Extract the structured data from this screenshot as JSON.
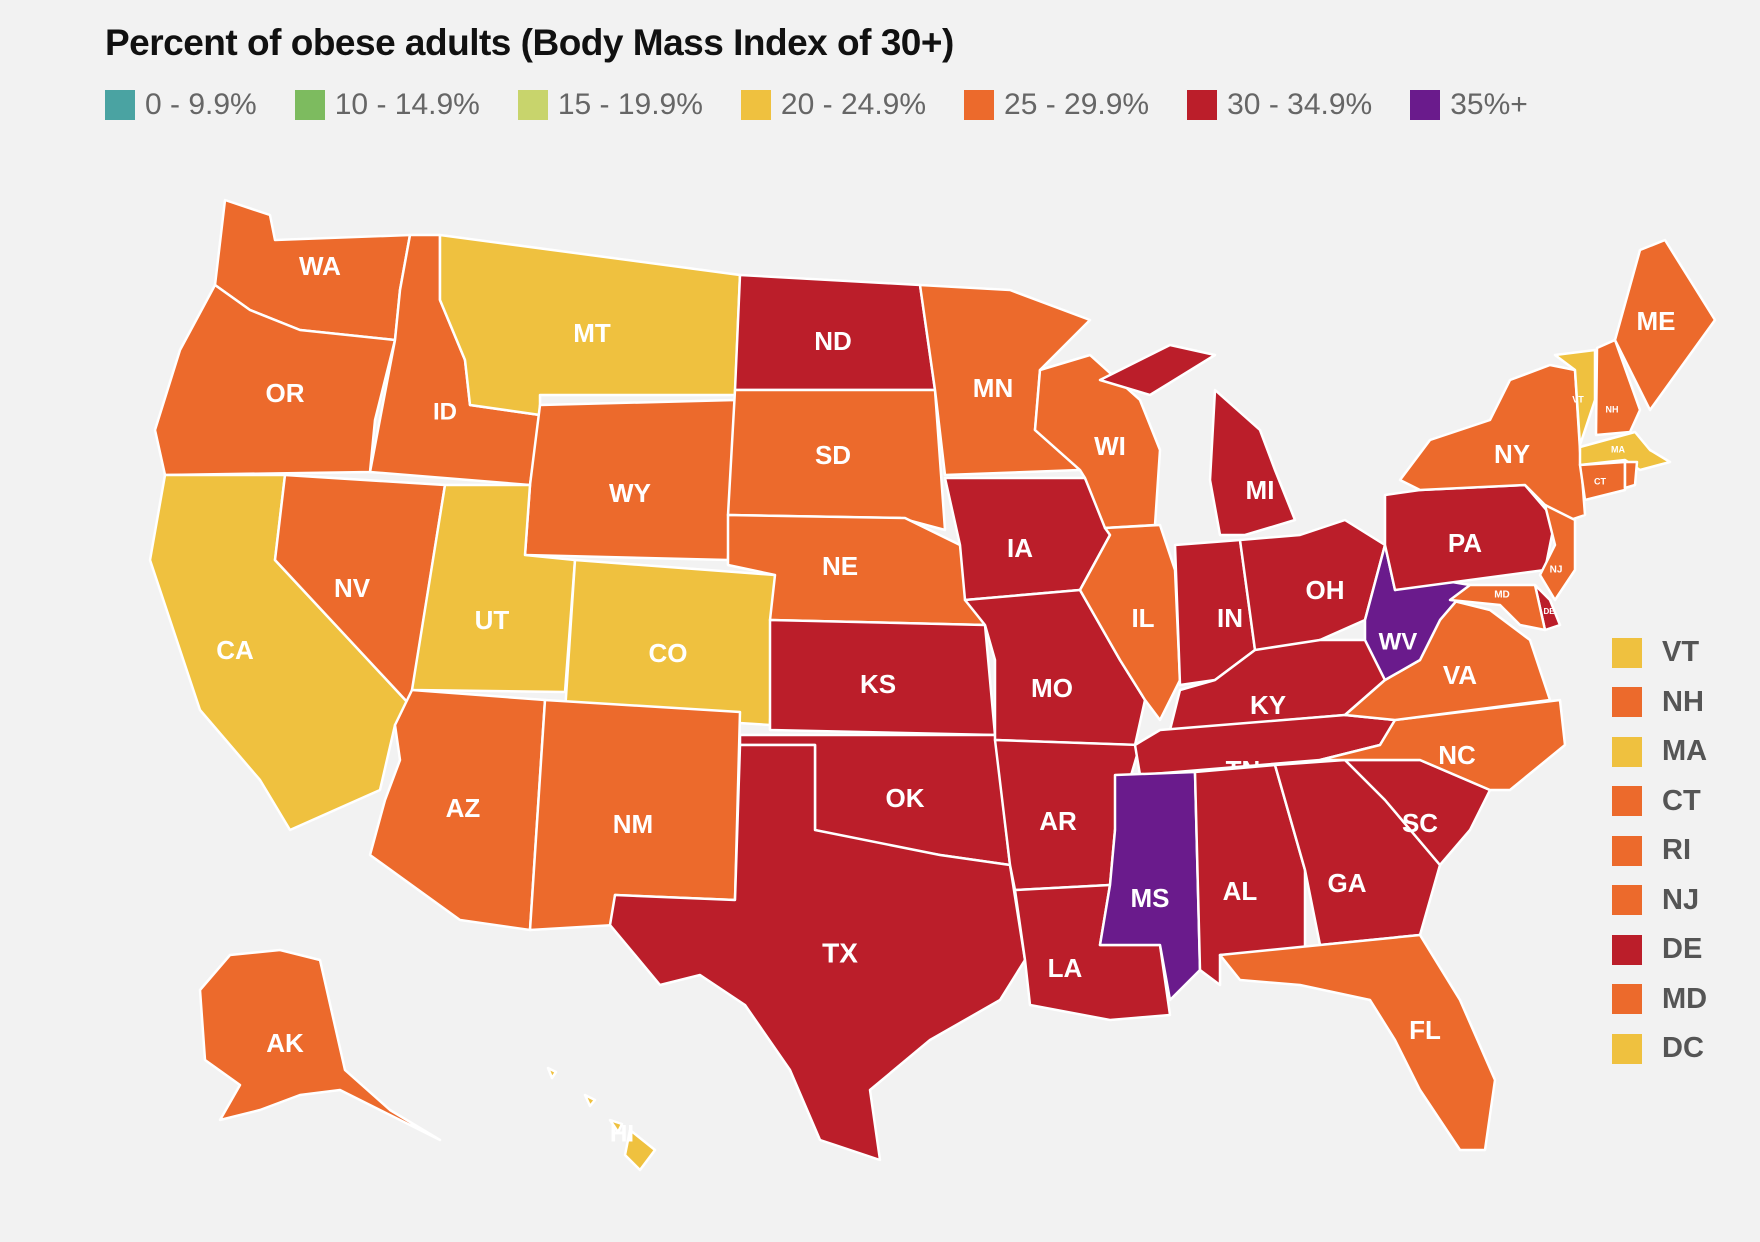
{
  "title": "Percent of obese adults (Body Mass Index of 30+)",
  "legend": [
    {
      "label": "0 - 9.9%",
      "color": "#4aa3a2"
    },
    {
      "label": "10 - 14.9%",
      "color": "#7dbb5f"
    },
    {
      "label": "15 - 19.9%",
      "color": "#c8d46c"
    },
    {
      "label": "20 - 24.9%",
      "color": "#efc13f"
    },
    {
      "label": "25 - 29.9%",
      "color": "#ec6a2c"
    },
    {
      "label": "30 - 34.9%",
      "color": "#bb1e2a"
    },
    {
      "label": "35%+",
      "color": "#6a1b8c"
    }
  ],
  "states": {
    "WA": "25 - 29.9%",
    "OR": "25 - 29.9%",
    "CA": "20 - 24.9%",
    "NV": "25 - 29.9%",
    "ID": "25 - 29.9%",
    "MT": "20 - 24.9%",
    "WY": "25 - 29.9%",
    "UT": "20 - 24.9%",
    "CO": "20 - 24.9%",
    "AZ": "25 - 29.9%",
    "NM": "25 - 29.9%",
    "ND": "30 - 34.9%",
    "SD": "25 - 29.9%",
    "NE": "25 - 29.9%",
    "KS": "30 - 34.9%",
    "OK": "30 - 34.9%",
    "TX": "30 - 34.9%",
    "MN": "25 - 29.9%",
    "IA": "30 - 34.9%",
    "MO": "30 - 34.9%",
    "AR": "30 - 34.9%",
    "LA": "30 - 34.9%",
    "WI": "25 - 29.9%",
    "IL": "25 - 29.9%",
    "MI": "30 - 34.9%",
    "IN": "30 - 34.9%",
    "OH": "30 - 34.9%",
    "KY": "30 - 34.9%",
    "TN": "30 - 34.9%",
    "MS": "35%+",
    "AL": "30 - 34.9%",
    "GA": "30 - 34.9%",
    "FL": "25 - 29.9%",
    "SC": "30 - 34.9%",
    "NC": "25 - 29.9%",
    "VA": "25 - 29.9%",
    "WV": "35%+",
    "PA": "30 - 34.9%",
    "NY": "25 - 29.9%",
    "NJ": "25 - 29.9%",
    "DE": "30 - 34.9%",
    "MD": "25 - 29.9%",
    "VT": "20 - 24.9%",
    "NH": "25 - 29.9%",
    "ME": "25 - 29.9%",
    "MA": "20 - 24.9%",
    "CT": "25 - 29.9%",
    "RI": "25 - 29.9%",
    "AK": "25 - 29.9%",
    "HI": "20 - 24.9%",
    "DC": "20 - 24.9%"
  },
  "side_legend": [
    "VT",
    "NH",
    "MA",
    "CT",
    "RI",
    "NJ",
    "DE",
    "MD",
    "DC"
  ]
}
